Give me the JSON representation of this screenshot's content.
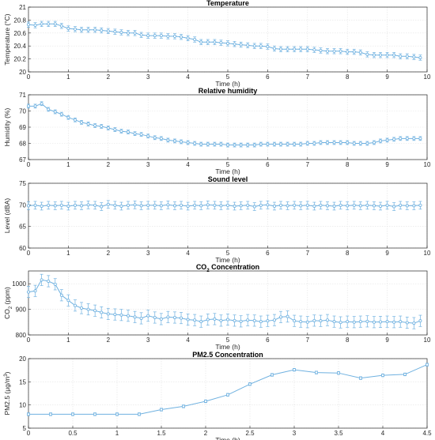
{
  "chart_data": [
    {
      "type": "line",
      "title": "Temperature",
      "xlabel": "Time (h)",
      "ylabel": "Temperature (°C)",
      "xlim": [
        0,
        10
      ],
      "ylim": [
        20,
        21
      ],
      "xticks": [
        0,
        1,
        2,
        3,
        4,
        5,
        6,
        7,
        8,
        9,
        10
      ],
      "yticks": [
        20,
        20.2,
        20.4,
        20.6,
        20.8,
        21
      ],
      "ytick_labels": [
        "20",
        "20.2",
        "20.4",
        "20.6",
        "20.8",
        "21"
      ],
      "grid": true,
      "error": 0.04,
      "color": "#6fb1e0",
      "x": [
        0.0,
        0.17,
        0.33,
        0.5,
        0.67,
        0.83,
        1.0,
        1.17,
        1.33,
        1.5,
        1.67,
        1.83,
        2.0,
        2.17,
        2.33,
        2.5,
        2.67,
        2.83,
        3.0,
        3.17,
        3.33,
        3.5,
        3.67,
        3.83,
        4.0,
        4.17,
        4.33,
        4.5,
        4.67,
        4.83,
        5.0,
        5.17,
        5.33,
        5.5,
        5.67,
        5.83,
        6.0,
        6.17,
        6.33,
        6.5,
        6.67,
        6.83,
        7.0,
        7.17,
        7.33,
        7.5,
        7.67,
        7.83,
        8.0,
        8.17,
        8.33,
        8.5,
        8.67,
        8.83,
        9.0,
        9.17,
        9.33,
        9.5,
        9.67,
        9.83
      ],
      "y": [
        20.73,
        20.72,
        20.74,
        20.74,
        20.74,
        20.71,
        20.67,
        20.66,
        20.65,
        20.65,
        20.65,
        20.64,
        20.63,
        20.62,
        20.61,
        20.6,
        20.6,
        20.57,
        20.56,
        20.56,
        20.56,
        20.55,
        20.55,
        20.54,
        20.52,
        20.5,
        20.46,
        20.46,
        20.46,
        20.45,
        20.44,
        20.43,
        20.42,
        20.41,
        20.4,
        20.4,
        20.39,
        20.36,
        20.35,
        20.35,
        20.35,
        20.35,
        20.35,
        20.34,
        20.33,
        20.32,
        20.32,
        20.32,
        20.31,
        20.31,
        20.3,
        20.27,
        20.26,
        20.26,
        20.26,
        20.26,
        20.24,
        20.24,
        20.23,
        20.22
      ]
    },
    {
      "type": "line",
      "title": "Relative humidity",
      "xlabel": "Time (h)",
      "ylabel": "Humidity (%)",
      "xlim": [
        0,
        10
      ],
      "ylim": [
        67,
        71
      ],
      "xticks": [
        0,
        1,
        2,
        3,
        4,
        5,
        6,
        7,
        8,
        9,
        10
      ],
      "yticks": [
        67,
        68,
        69,
        70,
        71
      ],
      "ytick_labels": [
        "67",
        "68",
        "69",
        "70",
        "71"
      ],
      "grid": true,
      "error": 0.12,
      "color": "#6fb1e0",
      "x": [
        0.0,
        0.17,
        0.33,
        0.5,
        0.67,
        0.83,
        1.0,
        1.17,
        1.33,
        1.5,
        1.67,
        1.83,
        2.0,
        2.17,
        2.33,
        2.5,
        2.67,
        2.83,
        3.0,
        3.17,
        3.33,
        3.5,
        3.67,
        3.83,
        4.0,
        4.17,
        4.33,
        4.5,
        4.67,
        4.83,
        5.0,
        5.17,
        5.33,
        5.5,
        5.67,
        5.83,
        6.0,
        6.17,
        6.33,
        6.5,
        6.67,
        6.83,
        7.0,
        7.17,
        7.33,
        7.5,
        7.67,
        7.83,
        8.0,
        8.17,
        8.33,
        8.5,
        8.67,
        8.83,
        9.0,
        9.17,
        9.33,
        9.5,
        9.67,
        9.83
      ],
      "y": [
        70.3,
        70.3,
        70.45,
        70.1,
        69.95,
        69.8,
        69.6,
        69.45,
        69.3,
        69.2,
        69.1,
        69.05,
        68.95,
        68.85,
        68.75,
        68.7,
        68.6,
        68.55,
        68.45,
        68.35,
        68.3,
        68.2,
        68.15,
        68.1,
        68.05,
        68.0,
        67.95,
        67.95,
        67.95,
        67.95,
        67.9,
        67.9,
        67.9,
        67.9,
        67.9,
        67.95,
        67.95,
        67.95,
        67.95,
        67.95,
        67.95,
        67.95,
        68.0,
        68.0,
        68.05,
        68.05,
        68.05,
        68.05,
        68.05,
        68.0,
        68.0,
        68.0,
        68.05,
        68.15,
        68.2,
        68.25,
        68.3,
        68.3,
        68.3,
        68.3
      ]
    },
    {
      "type": "line",
      "title": "Sound level",
      "xlabel": "Time (h)",
      "ylabel": "Level (dBA)",
      "xlim": [
        0,
        10
      ],
      "ylim": [
        60,
        75
      ],
      "xticks": [
        0,
        1,
        2,
        3,
        4,
        5,
        6,
        7,
        8,
        9,
        10
      ],
      "yticks": [
        60,
        65,
        70,
        75
      ],
      "ytick_labels": [
        "60",
        "65",
        "70",
        "75"
      ],
      "grid": true,
      "error": 0.9,
      "color": "#6fb1e0",
      "x": [
        0.0,
        0.17,
        0.33,
        0.5,
        0.67,
        0.83,
        1.0,
        1.17,
        1.33,
        1.5,
        1.67,
        1.83,
        2.0,
        2.17,
        2.33,
        2.5,
        2.67,
        2.83,
        3.0,
        3.17,
        3.33,
        3.5,
        3.67,
        3.83,
        4.0,
        4.17,
        4.33,
        4.5,
        4.67,
        4.83,
        5.0,
        5.17,
        5.33,
        5.5,
        5.67,
        5.83,
        6.0,
        6.17,
        6.33,
        6.5,
        6.67,
        6.83,
        7.0,
        7.17,
        7.33,
        7.5,
        7.67,
        7.83,
        8.0,
        8.17,
        8.33,
        8.5,
        8.67,
        8.83,
        9.0,
        9.17,
        9.33,
        9.5,
        9.67,
        9.83
      ],
      "y": [
        69.8,
        69.9,
        69.7,
        69.9,
        69.8,
        69.9,
        69.7,
        69.9,
        69.8,
        70.0,
        69.9,
        69.6,
        70.1,
        69.9,
        69.7,
        69.9,
        70.0,
        69.8,
        69.9,
        69.9,
        69.8,
        70.0,
        69.8,
        69.9,
        69.7,
        69.9,
        69.8,
        70.0,
        69.9,
        69.8,
        69.9,
        69.7,
        69.8,
        69.9,
        69.6,
        69.9,
        70.0,
        69.7,
        69.9,
        69.8,
        69.9,
        69.8,
        69.9,
        69.7,
        69.9,
        69.8,
        69.7,
        69.9,
        69.8,
        69.9,
        69.8,
        69.9,
        69.8,
        69.7,
        69.9,
        69.6,
        69.9,
        69.8,
        69.8,
        69.9
      ]
    },
    {
      "type": "line",
      "title": "CO2 Concentration",
      "title_parts": [
        "CO",
        "2",
        " Concentration"
      ],
      "xlabel": "Time (h)",
      "ylabel": "CO2 (ppm)",
      "ylabel_parts": [
        "CO",
        "2",
        " (ppm)"
      ],
      "xlim": [
        0,
        10
      ],
      "ylim": [
        800,
        1050
      ],
      "xticks": [
        0,
        1,
        2,
        3,
        4,
        5,
        6,
        7,
        8,
        9,
        10
      ],
      "yticks": [
        800,
        900,
        1000
      ],
      "ytick_labels": [
        "800",
        "900",
        "1000"
      ],
      "grid": true,
      "error": 22,
      "color": "#6fb1e0",
      "x": [
        0.0,
        0.17,
        0.33,
        0.5,
        0.67,
        0.83,
        1.0,
        1.17,
        1.33,
        1.5,
        1.67,
        1.83,
        2.0,
        2.17,
        2.33,
        2.5,
        2.67,
        2.83,
        3.0,
        3.17,
        3.33,
        3.5,
        3.67,
        3.83,
        4.0,
        4.17,
        4.33,
        4.5,
        4.67,
        4.83,
        5.0,
        5.17,
        5.33,
        5.5,
        5.67,
        5.83,
        6.0,
        6.17,
        6.33,
        6.5,
        6.67,
        6.83,
        7.0,
        7.17,
        7.33,
        7.5,
        7.67,
        7.83,
        8.0,
        8.17,
        8.33,
        8.5,
        8.67,
        8.83,
        9.0,
        9.17,
        9.33,
        9.5,
        9.67,
        9.83
      ],
      "y": [
        968,
        972,
        1015,
        1010,
        998,
        955,
        935,
        915,
        905,
        900,
        895,
        888,
        882,
        880,
        878,
        875,
        870,
        865,
        875,
        868,
        862,
        870,
        868,
        866,
        860,
        858,
        852,
        860,
        862,
        856,
        860,
        856,
        853,
        858,
        856,
        852,
        855,
        858,
        870,
        872,
        855,
        852,
        850,
        856,
        855,
        858,
        852,
        849,
        852,
        850,
        852,
        853,
        850,
        851,
        852,
        850,
        852,
        848,
        846,
        855
      ]
    },
    {
      "type": "line",
      "title": "PM2.5 Concentration",
      "xlabel": "Time (h)",
      "ylabel": "PM2.5 (μg/m3)",
      "ylabel_parts": [
        "PM2.5 (μg/m",
        "3",
        ")"
      ],
      "xlim": [
        0,
        4.5
      ],
      "ylim": [
        5,
        20
      ],
      "xticks": [
        0,
        0.5,
        1,
        1.5,
        2,
        2.5,
        3,
        3.5,
        4,
        4.5
      ],
      "xtick_labels": [
        "0",
        "0.5",
        "1",
        "1.5",
        "2",
        "2.5",
        "3",
        "3.5",
        "4",
        "4.5"
      ],
      "yticks": [
        5,
        10,
        15,
        20
      ],
      "ytick_labels": [
        "5",
        "10",
        "15",
        "20"
      ],
      "grid": true,
      "error": 0.3,
      "color": "#6fb1e0",
      "x": [
        0.0,
        0.25,
        0.5,
        0.75,
        1.0,
        1.25,
        1.5,
        1.75,
        2.0,
        2.25,
        2.5,
        2.75,
        3.0,
        3.25,
        3.5,
        3.75,
        4.0,
        4.25,
        4.5
      ],
      "y": [
        8.0,
        8.0,
        8.0,
        8.0,
        8.0,
        8.0,
        9.0,
        9.7,
        10.8,
        12.2,
        14.5,
        16.5,
        17.6,
        17.0,
        16.9,
        15.8,
        16.4,
        16.6,
        18.7
      ]
    }
  ]
}
